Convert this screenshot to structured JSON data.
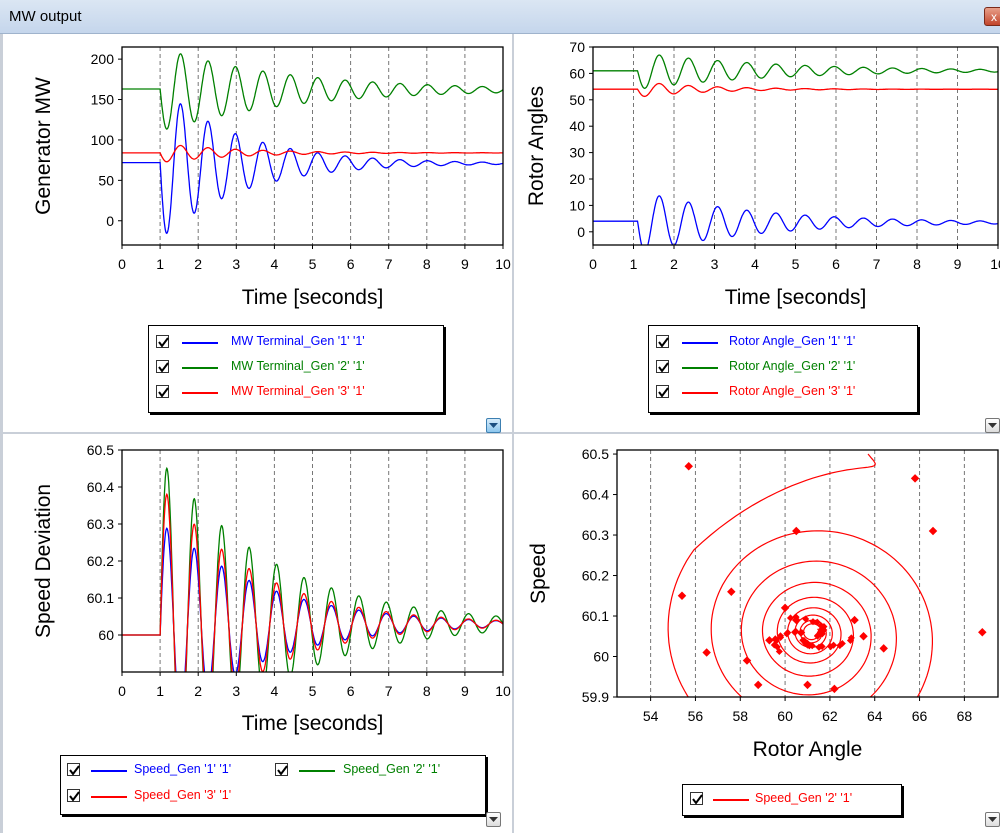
{
  "window": {
    "title": "MW output",
    "close_label": "x"
  },
  "colors": {
    "gen1": "#0000ff",
    "gen2": "#008000",
    "gen3": "#ff0000"
  },
  "icons": {
    "close": "close-icon",
    "dropdown": "chevron-down-icon",
    "checkbox": "checkmark-icon"
  },
  "chart_data": [
    {
      "type": "line",
      "ylabel": "Generator MW",
      "xlabel": "Time [seconds]",
      "xlim": [
        0,
        10
      ],
      "ylim": [
        -30,
        215
      ],
      "xticks": [
        0,
        1,
        2,
        3,
        4,
        5,
        6,
        7,
        8,
        9,
        10
      ],
      "yticks": [
        0,
        50,
        100,
        150,
        200
      ],
      "grid": "vertical dashed",
      "series": [
        {
          "name": "MW Terminal_Gen '1' '1'",
          "color": "#0000ff",
          "initial": 72,
          "step_time": 1.0,
          "final": 71,
          "amplitude": 95,
          "period": 0.72,
          "decay": 0.48
        },
        {
          "name": "MW Terminal_Gen '2' '1'",
          "color": "#008000",
          "initial": 163,
          "step_time": 1.0,
          "final": 162,
          "amplitude": 52,
          "period": 0.72,
          "decay": 0.3
        },
        {
          "name": "MW Terminal_Gen '3' '1'",
          "color": "#ff0000",
          "initial": 84,
          "step_time": 1.0,
          "final": 84,
          "amplitude": 12,
          "period": 0.72,
          "decay": 0.5
        }
      ]
    },
    {
      "type": "line",
      "ylabel": "Rotor Angles",
      "xlabel": "Time [seconds]",
      "xlim": [
        0,
        10
      ],
      "ylim": [
        -5,
        70
      ],
      "xticks": [
        0,
        1,
        2,
        3,
        4,
        5,
        6,
        7,
        8,
        9,
        10
      ],
      "yticks": [
        0,
        10,
        20,
        30,
        40,
        50,
        60,
        70
      ],
      "grid": "vertical dashed",
      "series": [
        {
          "name": "Rotor Angle_Gen '1' '1'",
          "color": "#0000ff",
          "initial": 4,
          "step_time": 1.1,
          "final": 3.5,
          "amplitude": 12,
          "period": 0.72,
          "decay": 0.35
        },
        {
          "name": "Rotor Angle_Gen '2' '1'",
          "color": "#008000",
          "initial": 61,
          "step_time": 1.1,
          "final": 61,
          "amplitude": 7,
          "period": 0.72,
          "decay": 0.3
        },
        {
          "name": "Rotor Angle_Gen '3' '1'",
          "color": "#ff0000",
          "initial": 54,
          "step_time": 1.1,
          "final": 54,
          "amplitude": 3,
          "period": 0.72,
          "decay": 0.6
        }
      ]
    },
    {
      "type": "line",
      "ylabel": "Speed Deviation",
      "xlabel": "Time [seconds]",
      "xlim": [
        0,
        10
      ],
      "ylim": [
        59.9,
        60.5
      ],
      "xticks": [
        0,
        1,
        2,
        3,
        4,
        5,
        6,
        7,
        8,
        9,
        10
      ],
      "yticks": [
        60,
        60.1,
        60.2,
        60.3,
        60.4,
        60.5
      ],
      "grid": "vertical dashed",
      "series": [
        {
          "name": "Speed_Gen '1' '1'",
          "color": "#0000ff",
          "initial": 60,
          "step_time": 1.0,
          "final": 60.03,
          "amplitude": 0.3,
          "period": 0.72,
          "decay": 0.4
        },
        {
          "name": "Speed_Gen '2' '1'",
          "color": "#008000",
          "initial": 60,
          "step_time": 1.0,
          "final": 60.03,
          "amplitude": 0.47,
          "period": 0.72,
          "decay": 0.35
        },
        {
          "name": "Speed_Gen '3' '1'",
          "color": "#ff0000",
          "initial": 60,
          "step_time": 1.0,
          "final": 60.03,
          "amplitude": 0.4,
          "period": 0.72,
          "decay": 0.42
        }
      ]
    },
    {
      "type": "scatter",
      "ylabel": "Speed",
      "xlabel": "Rotor Angle",
      "xlim": [
        52.5,
        69.5
      ],
      "ylim": [
        59.9,
        60.51
      ],
      "xticks": [
        54,
        56,
        58,
        60,
        62,
        64,
        66,
        68
      ],
      "yticks": [
        59.9,
        60,
        60.1,
        60.2,
        60.3,
        60.4,
        60.5
      ],
      "grid": "vertical dashed",
      "series": [
        {
          "name": "Speed_Gen '2' '1'",
          "color": "#ff0000",
          "center": [
            61.2,
            60.05
          ],
          "start": [
            63.7,
            60.5
          ],
          "spiral_points": [
            [
              55.7,
              60.47
            ],
            [
              65.8,
              60.44
            ],
            [
              66.6,
              60.31
            ],
            [
              60.5,
              60.31
            ],
            [
              57.6,
              60.16
            ],
            [
              55.4,
              60.15
            ],
            [
              56.5,
              60.01
            ],
            [
              58.3,
              59.99
            ],
            [
              58.8,
              59.93
            ],
            [
              61.0,
              59.93
            ],
            [
              62.2,
              59.92
            ],
            [
              68.8,
              60.06
            ],
            [
              64.4,
              60.02
            ],
            [
              63.5,
              60.05
            ],
            [
              63.1,
              60.09
            ],
            [
              60.0,
              60.12
            ],
            [
              59.3,
              60.04
            ],
            [
              60.5,
              60.09
            ],
            [
              61.0,
              60.03
            ],
            [
              61.6,
              60.06
            ]
          ]
        }
      ]
    }
  ],
  "panels": [
    {
      "legend": [
        {
          "checked": true,
          "label": "MW Terminal_Gen '1' '1'"
        },
        {
          "checked": true,
          "label": "MW Terminal_Gen '2' '1'"
        },
        {
          "checked": true,
          "label": "MW Terminal_Gen '3' '1'"
        }
      ]
    },
    {
      "legend": [
        {
          "checked": true,
          "label": "Rotor Angle_Gen '1' '1'"
        },
        {
          "checked": true,
          "label": "Rotor Angle_Gen '2' '1'"
        },
        {
          "checked": true,
          "label": "Rotor Angle_Gen '3' '1'"
        }
      ]
    },
    {
      "legend": [
        {
          "checked": true,
          "label": "Speed_Gen '1' '1'"
        },
        {
          "checked": true,
          "label": "Speed_Gen '2' '1'"
        },
        {
          "checked": true,
          "label": "Speed_Gen '3' '1'"
        }
      ]
    },
    {
      "legend": [
        {
          "checked": true,
          "label": "Speed_Gen '2' '1'"
        }
      ]
    }
  ]
}
